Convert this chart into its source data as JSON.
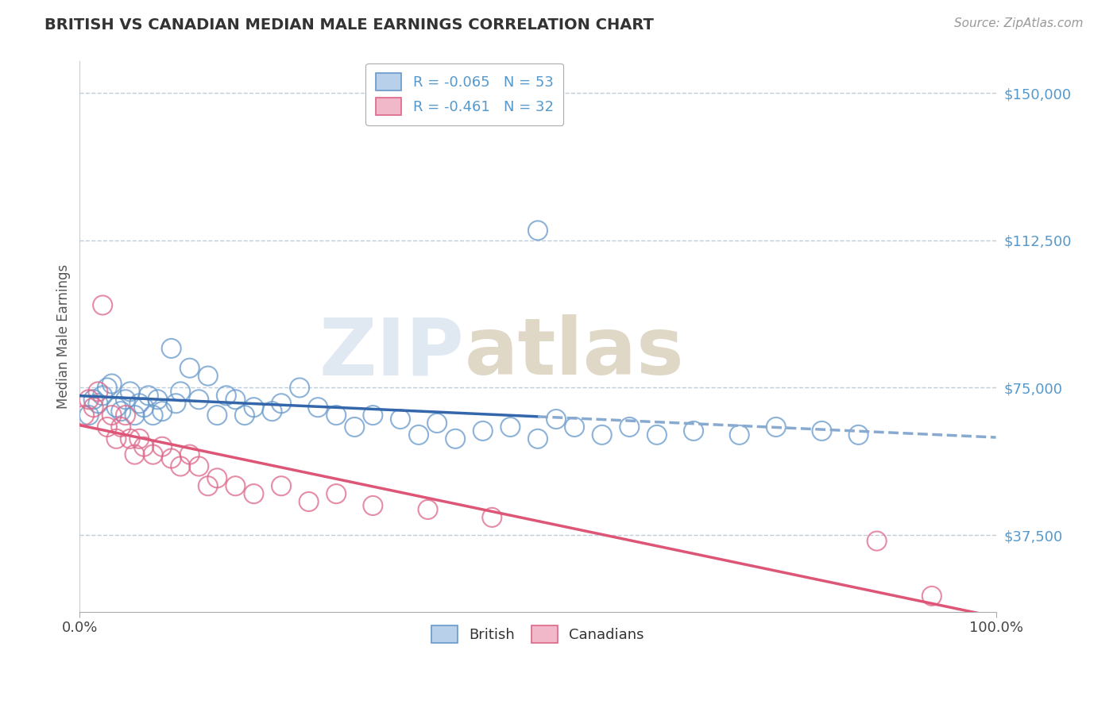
{
  "title": "BRITISH VS CANADIAN MEDIAN MALE EARNINGS CORRELATION CHART",
  "source_text": "Source: ZipAtlas.com",
  "ylabel": "Median Male Earnings",
  "xlim": [
    0,
    1.0
  ],
  "ylim": [
    18000,
    158000
  ],
  "yticks": [
    37500,
    75000,
    112500,
    150000
  ],
  "ytick_labels": [
    "$37,500",
    "$75,000",
    "$112,500",
    "$150,000"
  ],
  "xtick_labels": [
    "0.0%",
    "100.0%"
  ],
  "background_color": "#ffffff",
  "grid_color": "#b8c8d8",
  "title_color": "#333333",
  "axis_label_color": "#555555",
  "ytick_color": "#5599cc",
  "xtick_color": "#444444",
  "british_edge_color": "#6699cc",
  "canadian_edge_color": "#dd6688",
  "trendline_british_solid_color": "#3366aa",
  "trendline_british_dash_color": "#88aad0",
  "trendline_canadian_color": "#dd5577",
  "legend_british_label": "R = -0.065   N = 53",
  "legend_canadian_label": "R = -0.461   N = 32",
  "legend_bottom_british": "British",
  "legend_bottom_canadian": "Canadians",
  "british_x": [
    0.01,
    0.015,
    0.02,
    0.025,
    0.03,
    0.035,
    0.04,
    0.045,
    0.05,
    0.055,
    0.06,
    0.065,
    0.07,
    0.075,
    0.08,
    0.085,
    0.09,
    0.1,
    0.105,
    0.11,
    0.12,
    0.13,
    0.14,
    0.15,
    0.16,
    0.17,
    0.18,
    0.19,
    0.21,
    0.22,
    0.24,
    0.26,
    0.28,
    0.3,
    0.32,
    0.35,
    0.37,
    0.39,
    0.41,
    0.44,
    0.47,
    0.5,
    0.52,
    0.54,
    0.57,
    0.6,
    0.63,
    0.67,
    0.72,
    0.76,
    0.81,
    0.85,
    0.5
  ],
  "british_y": [
    68000,
    72000,
    71000,
    73000,
    75000,
    76000,
    70000,
    69000,
    72000,
    74000,
    68000,
    71000,
    70000,
    73000,
    68000,
    72000,
    69000,
    85000,
    71000,
    74000,
    80000,
    72000,
    78000,
    68000,
    73000,
    72000,
    68000,
    70000,
    69000,
    71000,
    75000,
    70000,
    68000,
    65000,
    68000,
    67000,
    63000,
    66000,
    62000,
    64000,
    65000,
    62000,
    67000,
    65000,
    63000,
    65000,
    63000,
    64000,
    63000,
    65000,
    64000,
    63000,
    115000
  ],
  "canadian_x": [
    0.005,
    0.01,
    0.015,
    0.02,
    0.025,
    0.03,
    0.035,
    0.04,
    0.045,
    0.05,
    0.055,
    0.06,
    0.065,
    0.07,
    0.08,
    0.09,
    0.1,
    0.11,
    0.12,
    0.13,
    0.14,
    0.15,
    0.17,
    0.19,
    0.22,
    0.25,
    0.28,
    0.32,
    0.38,
    0.45,
    0.87,
    0.93
  ],
  "canadian_y": [
    68000,
    72000,
    70000,
    74000,
    96000,
    65000,
    68000,
    62000,
    65000,
    68000,
    62000,
    58000,
    62000,
    60000,
    58000,
    60000,
    57000,
    55000,
    58000,
    55000,
    50000,
    52000,
    50000,
    48000,
    50000,
    46000,
    48000,
    45000,
    44000,
    42000,
    36000,
    22000
  ]
}
